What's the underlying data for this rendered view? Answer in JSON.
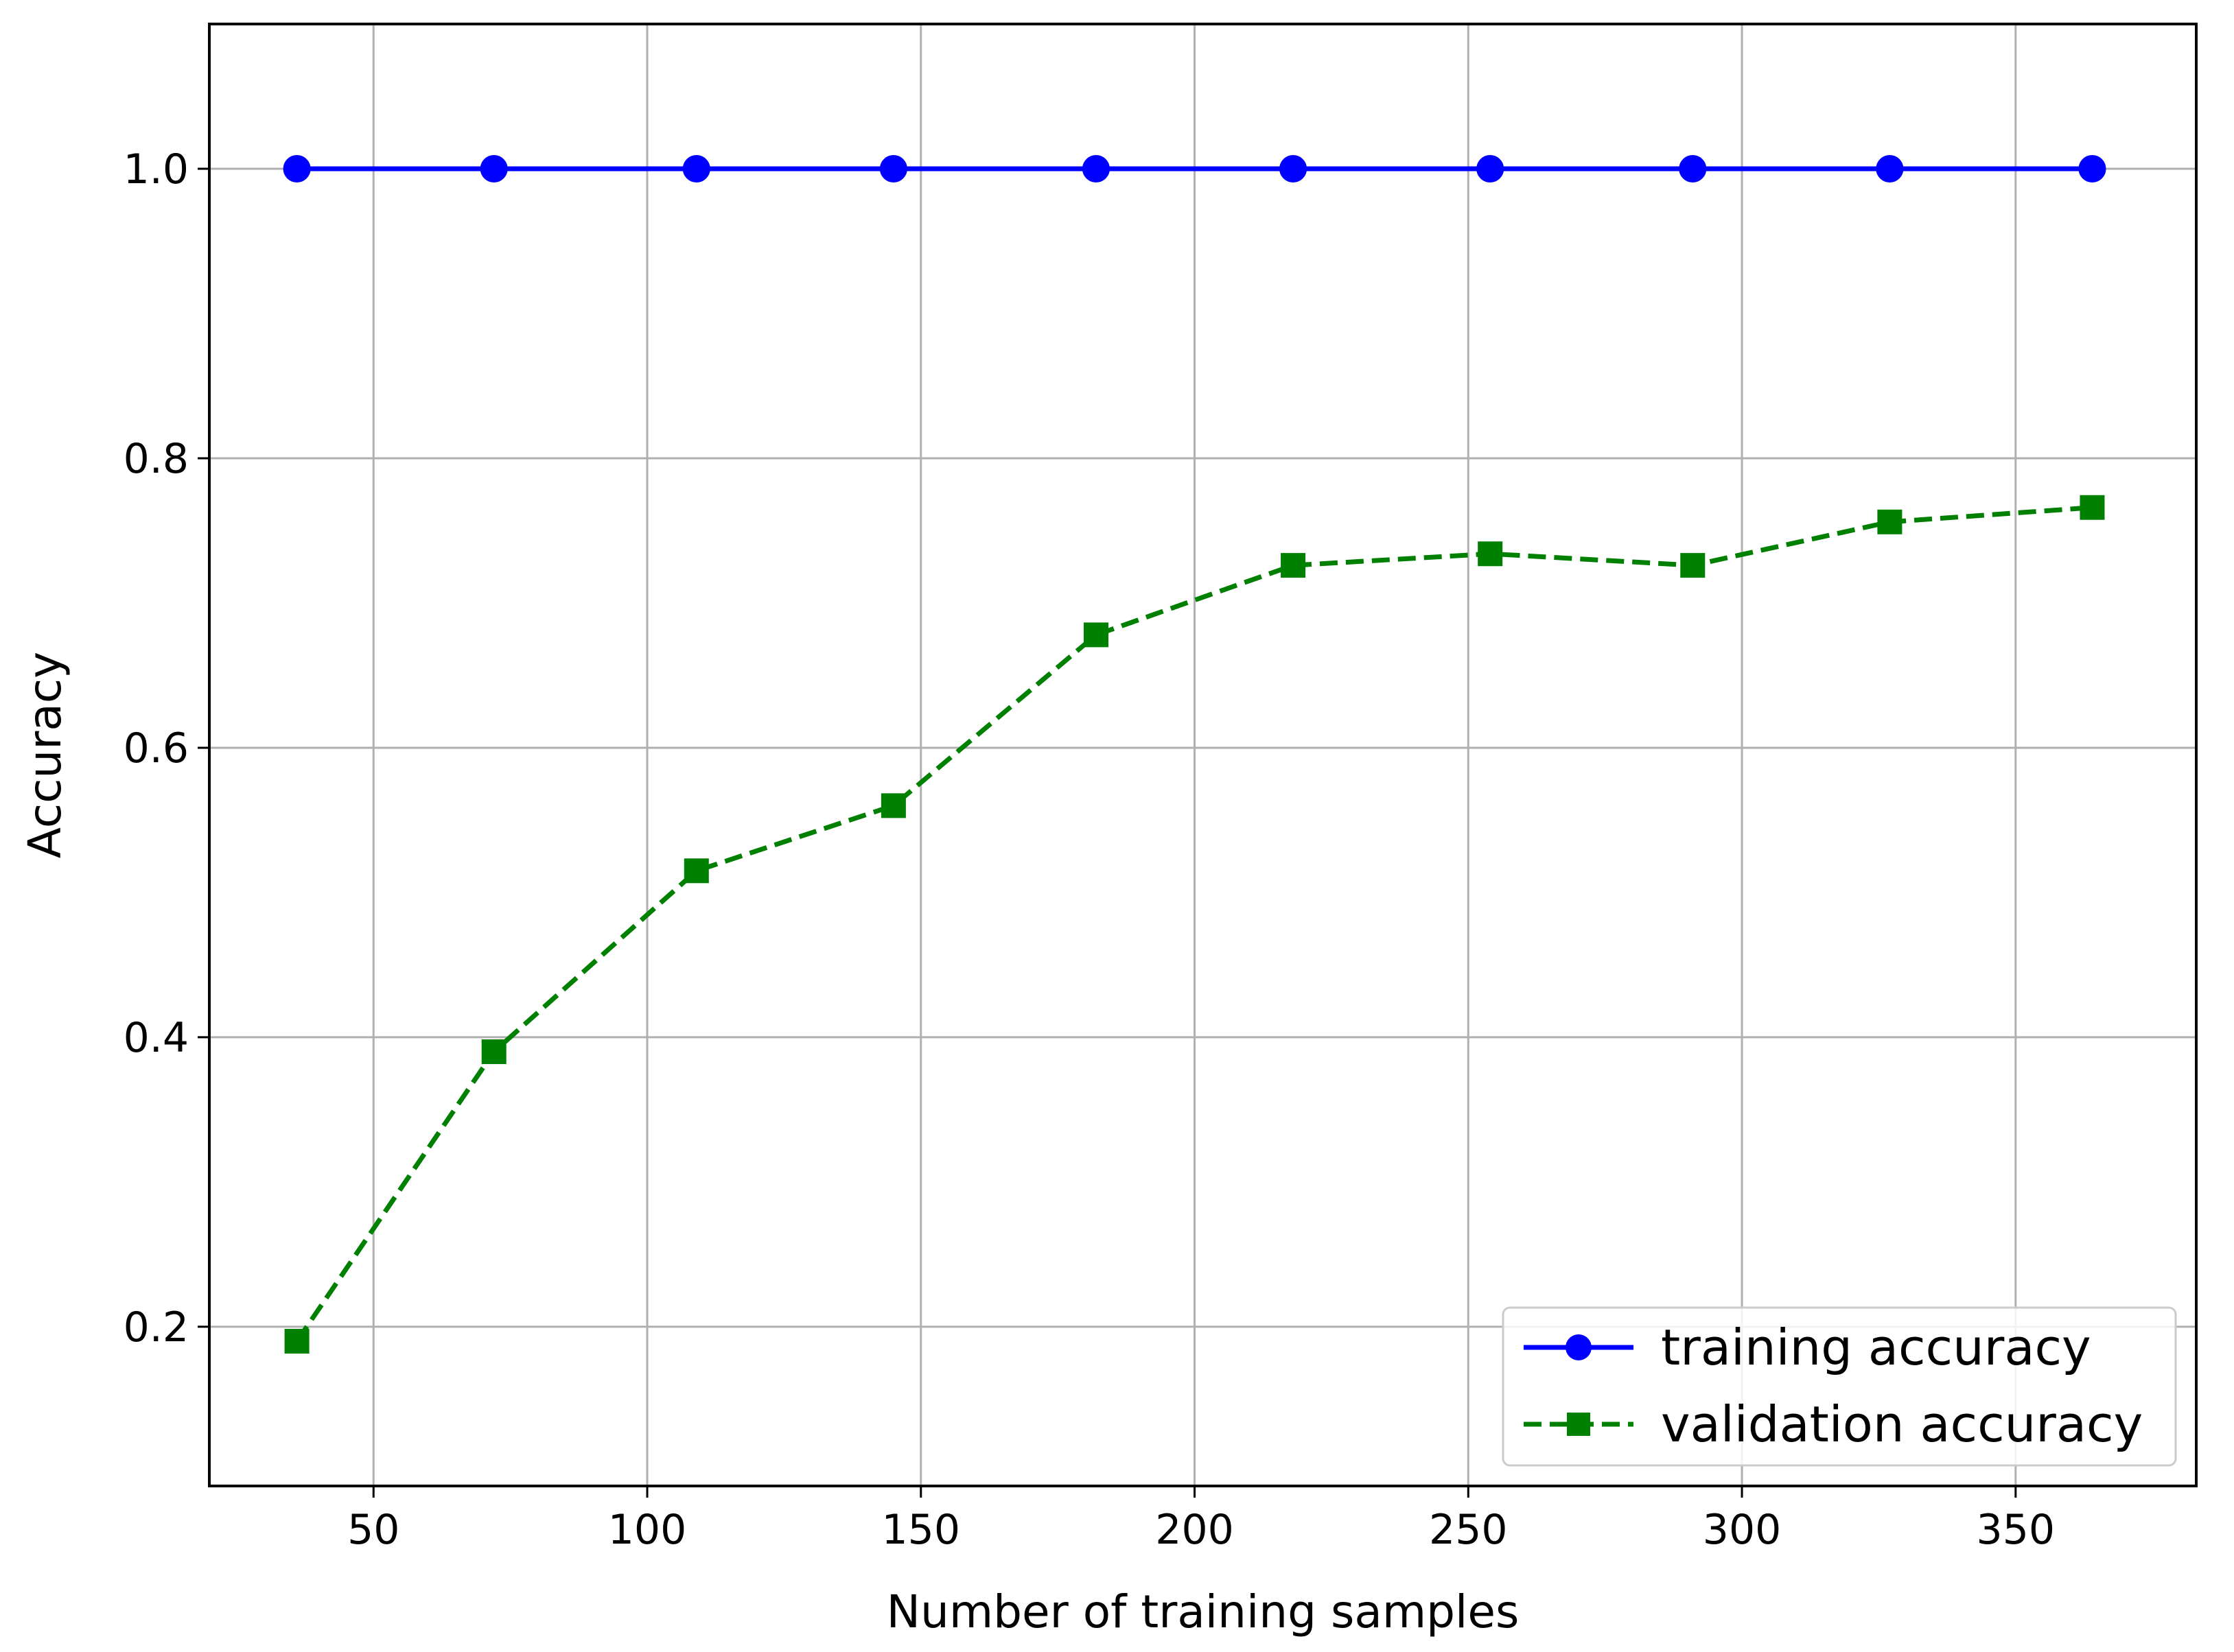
{
  "chart_data": {
    "type": "line",
    "title": "",
    "xlabel": "Number of training samples",
    "ylabel": "Accuracy",
    "xlim": [
      20,
      383
    ],
    "ylim": [
      0.09,
      1.1
    ],
    "xticks": [
      50,
      100,
      150,
      200,
      250,
      300,
      350
    ],
    "xtick_labels": [
      "50",
      "100",
      "150",
      "200",
      "250",
      "300",
      "350"
    ],
    "yticks": [
      0.2,
      0.4,
      0.6,
      0.8,
      1.0
    ],
    "ytick_labels": [
      "0.2",
      "0.4",
      "0.6",
      "0.8",
      "1.0"
    ],
    "grid": true,
    "legend_position": "lower-right",
    "x": [
      36,
      72,
      109,
      145,
      182,
      218,
      254,
      291,
      327,
      364
    ],
    "series": [
      {
        "name": "training accuracy",
        "values": [
          1.0,
          1.0,
          1.0,
          1.0,
          1.0,
          1.0,
          1.0,
          1.0,
          1.0,
          1.0
        ],
        "color": "#0000ff",
        "line_style": "solid",
        "marker": "circle"
      },
      {
        "name": "validation accuracy",
        "values": [
          0.19,
          0.39,
          0.515,
          0.56,
          0.678,
          0.726,
          0.734,
          0.726,
          0.756,
          0.766
        ],
        "color": "#008000",
        "line_style": "dashed",
        "marker": "square"
      }
    ]
  }
}
